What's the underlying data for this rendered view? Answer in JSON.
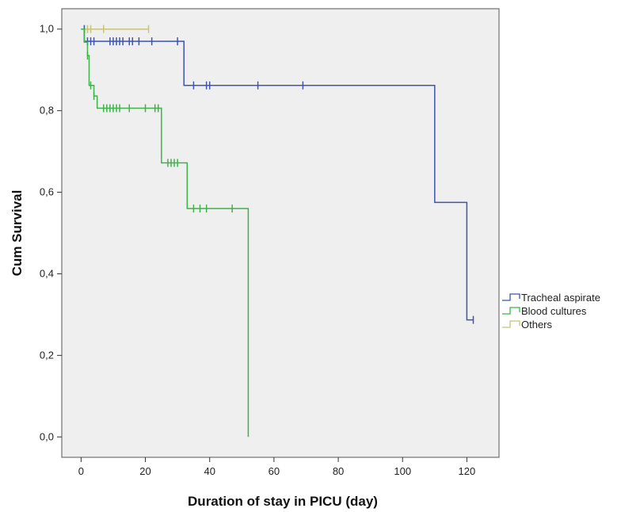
{
  "chart_data": {
    "type": "line",
    "subtype": "kaplan-meier",
    "xlabel": "Duration of stay in PICU (day)",
    "ylabel": "Cum Survival",
    "xlim": [
      -6,
      130
    ],
    "ylim": [
      -0.05,
      1.05
    ],
    "x_ticks": [
      0,
      20,
      40,
      60,
      80,
      100,
      120
    ],
    "x_tick_labels": [
      "0",
      "20",
      "40",
      "60",
      "80",
      "100",
      "120"
    ],
    "y_ticks": [
      0,
      0.2,
      0.4,
      0.6,
      0.8,
      1.0
    ],
    "y_tick_labels": [
      "0,0",
      "0,2",
      "0,4",
      "0,6",
      "0,8",
      "1,0"
    ],
    "grid": false,
    "legend_position": "right",
    "colors": {
      "plot_background": "#efefef",
      "frame": "#555555"
    },
    "series": [
      {
        "name": "Tracheal aspirate",
        "color": "#3d55b0",
        "steps": [
          [
            0,
            1.0
          ],
          [
            1,
            0.97
          ],
          [
            32,
            0.862
          ],
          [
            110,
            0.575
          ],
          [
            120,
            0.287
          ],
          [
            122,
            0.287
          ]
        ],
        "censored": [
          [
            1,
            1.0
          ],
          [
            2,
            0.97
          ],
          [
            3,
            0.97
          ],
          [
            4,
            0.97
          ],
          [
            9,
            0.97
          ],
          [
            10,
            0.97
          ],
          [
            11,
            0.97
          ],
          [
            12,
            0.97
          ],
          [
            13,
            0.97
          ],
          [
            15,
            0.97
          ],
          [
            16,
            0.97
          ],
          [
            18,
            0.97
          ],
          [
            22,
            0.97
          ],
          [
            30,
            0.97
          ],
          [
            35,
            0.862
          ],
          [
            39,
            0.862
          ],
          [
            40,
            0.862
          ],
          [
            55,
            0.862
          ],
          [
            69,
            0.862
          ],
          [
            122,
            0.287
          ]
        ]
      },
      {
        "name": "Blood cultures",
        "color": "#3fb34a",
        "steps": [
          [
            0,
            1.0
          ],
          [
            1,
            0.968
          ],
          [
            2,
            0.935
          ],
          [
            2.5,
            0.862
          ],
          [
            4,
            0.836
          ],
          [
            5,
            0.806
          ],
          [
            25,
            0.672
          ],
          [
            33,
            0.56
          ],
          [
            52,
            0.0
          ]
        ],
        "censored": [
          [
            2,
            0.935
          ],
          [
            3,
            0.862
          ],
          [
            4,
            0.836
          ],
          [
            7,
            0.806
          ],
          [
            8,
            0.806
          ],
          [
            9,
            0.806
          ],
          [
            10,
            0.806
          ],
          [
            11,
            0.806
          ],
          [
            12,
            0.806
          ],
          [
            15,
            0.806
          ],
          [
            20,
            0.806
          ],
          [
            23,
            0.806
          ],
          [
            24,
            0.806
          ],
          [
            27,
            0.672
          ],
          [
            28,
            0.672
          ],
          [
            29,
            0.672
          ],
          [
            30,
            0.672
          ],
          [
            35,
            0.56
          ],
          [
            37,
            0.56
          ],
          [
            39,
            0.56
          ],
          [
            47,
            0.56
          ]
        ]
      },
      {
        "name": "Others",
        "color": "#c9c27a",
        "steps": [
          [
            0,
            1.0
          ],
          [
            21,
            1.0
          ]
        ],
        "censored": [
          [
            1,
            1.0
          ],
          [
            2,
            1.0
          ],
          [
            3,
            1.0
          ],
          [
            7,
            1.0
          ],
          [
            21,
            1.0
          ]
        ]
      }
    ]
  }
}
